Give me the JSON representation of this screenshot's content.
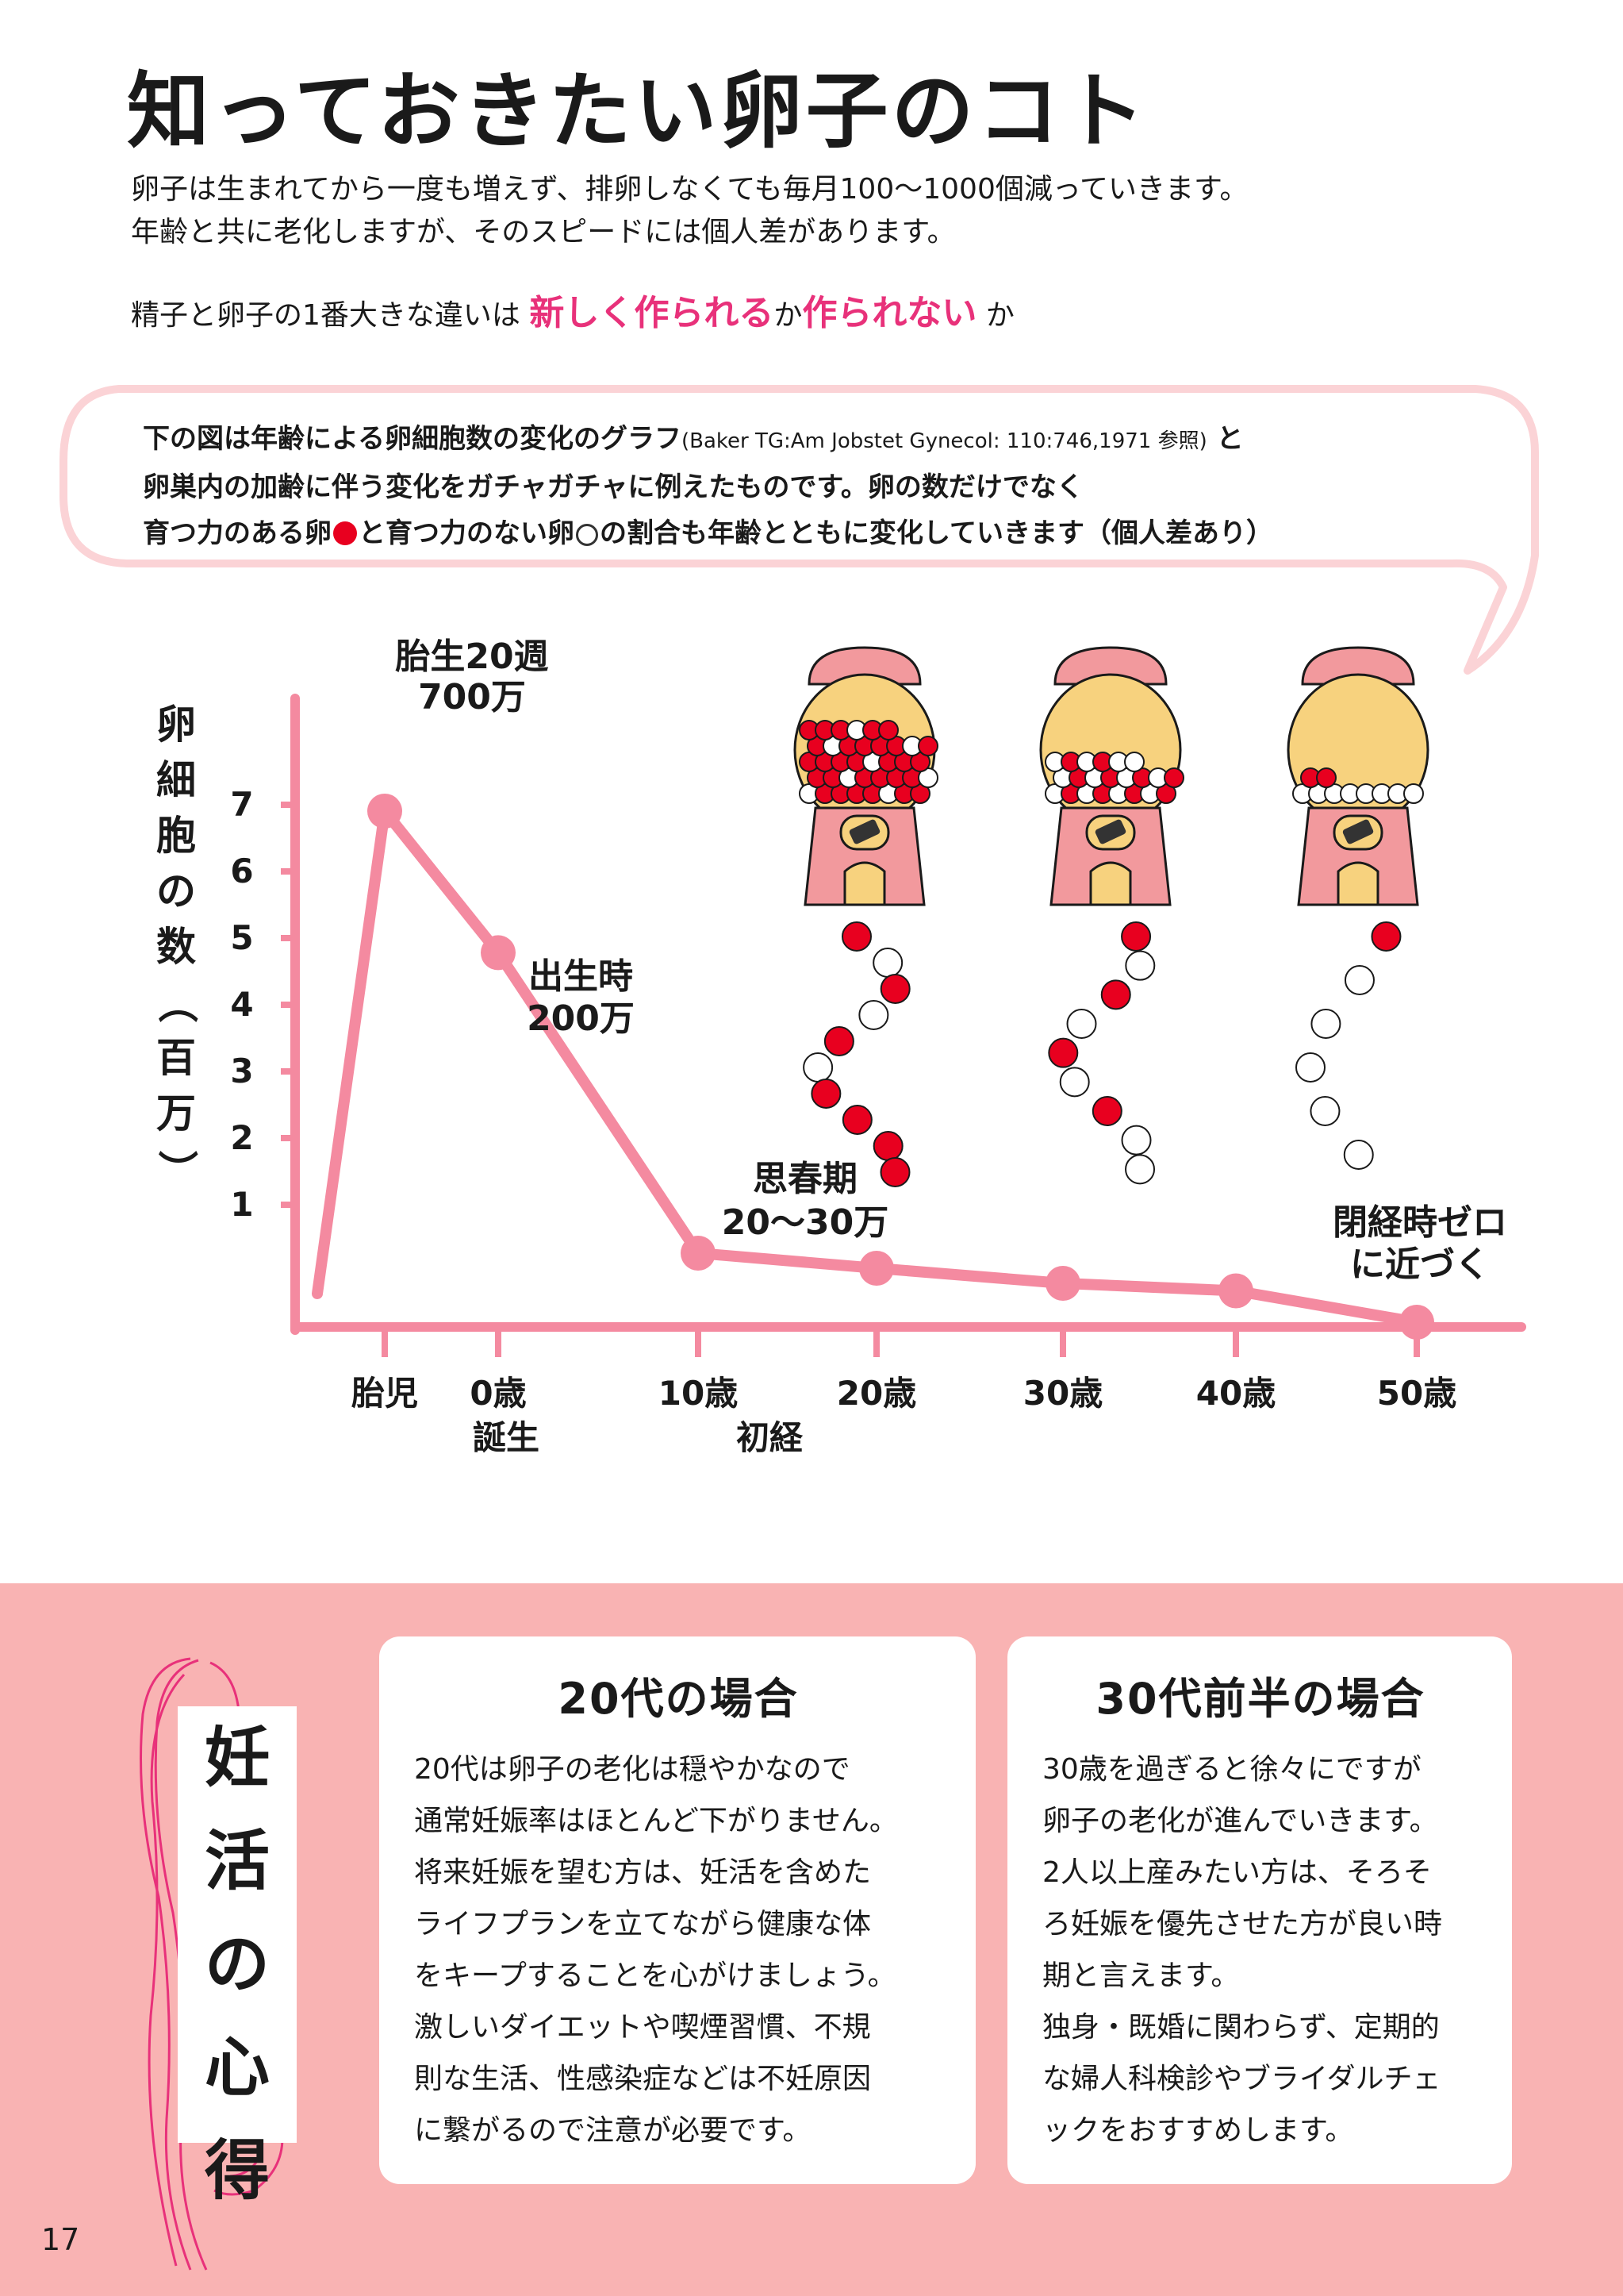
{
  "page": {
    "title": "知っておきたい卵子のコト",
    "intro_line1": "卵子は生まれてから一度も増えず、排卵しなくても毎月100〜1000個減っていきます。",
    "intro_line2": "年齢と共に老化しますが、そのスピードには個人差があります。",
    "diff_prefix": "精子と卵子の1番大きな違いは",
    "diff_highlight1": "新しく作られる",
    "diff_mid": "か",
    "diff_highlight2": "作られない",
    "diff_suffix": "か",
    "bubble_line1_main": "下の図は年齢による卵細胞数の変化のグラフ",
    "bubble_line1_ref": "(Baker TG:Am Jobstet Gynecol: 110:746,1971 参照)",
    "bubble_line1_end": "と",
    "bubble_line2": "卵巣内の加齢に伴う変化をガチャガチャに例えたものです。卵の数だけでなく",
    "bubble_line3_a": "育つ力のある卵",
    "bubble_line3_b": "と育つ力のない卵",
    "bubble_line3_c": "の割合も年齢とともに変化していきます（個人差あり）",
    "page_number": "17"
  },
  "chart_data": {
    "type": "line",
    "ylabel": "卵細胞の数（百万）",
    "yticks": [
      "1",
      "2",
      "3",
      "4",
      "5",
      "6",
      "7"
    ],
    "ylim": [
      0,
      7
    ],
    "x_ticks": [
      {
        "label": "胎児",
        "sub": ""
      },
      {
        "label": "0歳",
        "sub": "誕生"
      },
      {
        "label": "10歳",
        "sub": "初経"
      },
      {
        "label": "20歳",
        "sub": ""
      },
      {
        "label": "30歳",
        "sub": ""
      },
      {
        "label": "40歳",
        "sub": ""
      },
      {
        "label": "50歳",
        "sub": ""
      }
    ],
    "series": [
      {
        "values": [
          7.0,
          2.0,
          0.3,
          0.2,
          0.1,
          0.05,
          0.0
        ],
        "color": "#f48aa0"
      }
    ],
    "annotations": [
      {
        "line1": "胎生20週",
        "line2": "700万"
      },
      {
        "line1": "出生時",
        "line2": "200万"
      },
      {
        "line1": "思春期",
        "line2": "20〜30万"
      },
      {
        "line1": "閉経時ゼロ",
        "line2": "に近づく"
      }
    ],
    "gacha": [
      {
        "inside_red": 30,
        "inside_white": 8,
        "red_falling": 7,
        "white_falling": 3
      },
      {
        "inside_red": 10,
        "inside_white": 12,
        "red_falling": 4,
        "white_falling": 5
      },
      {
        "inside_red": 2,
        "inside_white": 8,
        "red_falling": 1,
        "white_falling": 5
      }
    ],
    "colors": {
      "line": "#f48aa0",
      "red_egg": "#e8001f",
      "white_egg": "#ffffff",
      "gacha_body": "#f2999d",
      "gacha_globe": "#f7d27e"
    }
  },
  "cards": [
    {
      "title": "20代の場合",
      "lines": [
        "20代は卵子の老化は穏やかなので",
        "通常妊娠率はほとんど下がりません。",
        "将来妊娠を望む方は、妊活を含めた",
        "ライフプランを立てながら健康な体",
        "をキープすることを心がけましょう。",
        "激しいダイエットや喫煙習慣、不規",
        "則な生活、性感染症などは不妊原因",
        "に繋がるので注意が必要です。"
      ]
    },
    {
      "title": "30代前半の場合",
      "lines": [
        "30歳を過ぎると徐々にですが",
        "卵子の老化が進んでいきます。",
        "2人以上産みたい方は、そろそ",
        "ろ妊娠を優先させた方が良い時",
        "期と言えます。",
        "独身・既婚に関わらず、定期的",
        "な婦人科検診やブライダルチェ",
        "ックをおすすめします。"
      ]
    }
  ],
  "sidebar_tag": {
    "chars": [
      "妊",
      "活",
      "の",
      "心",
      "得"
    ]
  }
}
